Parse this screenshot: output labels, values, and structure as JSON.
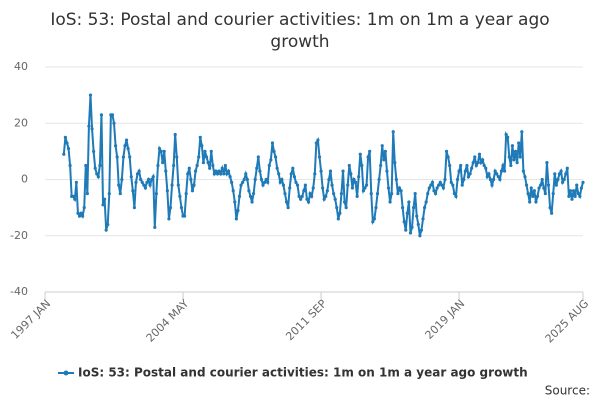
{
  "chart_data": {
    "type": "line",
    "title": "IoS: 53: Postal and courier activities: 1m on 1m a year ago growth",
    "source": "Source:",
    "categories": [
      "1997 JAN",
      null,
      null,
      null,
      null,
      null,
      null,
      null,
      null,
      null,
      null,
      null,
      null,
      null,
      null,
      null,
      null,
      null,
      null,
      null,
      null,
      null,
      null,
      null,
      null,
      null,
      null,
      null,
      null,
      null,
      null,
      null,
      null,
      null,
      null,
      null,
      null,
      null,
      null,
      null,
      null,
      null,
      null,
      null,
      null,
      null,
      null,
      null,
      null,
      null,
      null,
      null,
      null,
      null,
      null,
      null,
      null,
      null,
      null,
      null,
      null,
      null,
      null,
      null,
      null,
      null,
      null,
      null,
      null,
      null,
      null,
      null,
      null,
      null,
      null,
      null,
      null,
      null,
      null,
      null,
      null,
      null,
      null,
      null,
      null,
      null,
      null,
      null,
      "2004 MAY",
      null,
      null,
      null,
      null,
      null,
      null,
      null,
      null,
      null,
      null,
      null,
      null,
      null,
      null,
      null,
      null,
      null,
      null,
      null,
      null,
      null,
      null,
      null,
      null,
      null,
      null,
      null,
      null,
      null,
      null,
      null,
      null,
      null,
      null,
      null,
      null,
      null,
      null,
      null,
      null,
      null,
      null,
      null,
      null,
      null,
      null,
      null,
      null,
      null,
      null,
      null,
      null,
      null,
      null,
      null,
      null,
      null,
      null,
      null,
      null,
      null,
      null,
      null,
      null,
      null,
      null,
      null,
      null,
      null,
      null,
      null,
      null,
      null,
      null,
      null,
      null,
      null,
      null,
      null,
      null,
      null,
      null,
      null,
      null,
      null,
      null,
      null,
      "2011 SEP",
      null,
      null,
      null,
      null,
      null,
      null,
      null,
      null,
      null,
      null,
      null,
      null,
      null,
      null,
      null,
      null,
      null,
      null,
      null,
      null,
      null,
      null,
      null,
      null,
      null,
      null,
      null,
      null,
      null,
      null,
      null,
      null,
      null,
      null,
      null,
      null,
      null,
      null,
      null,
      null,
      null,
      null,
      null,
      null,
      null,
      null,
      null,
      null,
      null,
      null,
      null,
      null,
      null,
      null,
      null,
      null,
      null,
      null,
      null,
      null,
      null,
      null,
      null,
      null,
      null,
      null,
      null,
      null,
      null,
      null,
      null,
      null,
      null,
      null,
      null,
      null,
      null,
      null,
      null,
      null,
      null,
      null,
      null,
      null,
      null,
      null,
      null,
      "2019 JAN",
      null,
      null,
      null,
      null,
      null,
      null,
      null,
      null,
      null,
      null,
      null,
      null,
      null,
      null,
      null,
      null,
      null,
      null,
      null,
      null,
      null,
      null,
      null,
      null,
      null,
      null,
      null,
      null,
      null,
      null,
      null,
      null,
      null,
      null,
      null,
      null,
      null,
      null,
      null,
      null,
      null,
      null,
      null,
      null,
      null,
      null,
      null,
      null,
      null,
      null,
      null,
      null,
      null,
      null,
      null,
      null,
      null,
      null,
      null,
      null,
      null,
      null,
      null,
      null,
      null,
      null,
      null,
      null,
      null,
      null,
      null,
      null,
      null,
      null,
      null,
      null,
      null,
      null,
      "2025 AUG"
    ],
    "series": [
      {
        "name": "IoS: 53: Postal and courier activities: 1m on 1m a year ago growth",
        "color": "#1f7ab8",
        "values": [
          null,
          null,
          null,
          null,
          null,
          null,
          null,
          null,
          null,
          null,
          null,
          null,
          9,
          15,
          13,
          11,
          5,
          -6,
          -6,
          -7,
          -1,
          -12,
          -13,
          -12,
          -13,
          -10,
          5,
          -5,
          19,
          30,
          18,
          10,
          4,
          2,
          1,
          5,
          23,
          -9,
          -7,
          -18,
          -16,
          -5,
          23,
          23,
          20,
          12,
          8,
          -2,
          -5,
          0,
          8,
          12,
          14,
          11,
          8,
          1,
          -4,
          -10,
          -1,
          2,
          3,
          0,
          -1,
          -2,
          -3,
          -1,
          0,
          -2,
          0,
          1,
          -17,
          -5,
          5,
          11,
          10,
          6,
          10,
          3,
          -4,
          -14,
          -10,
          -2,
          5,
          16,
          8,
          -2,
          -6,
          -10,
          -13,
          -13,
          -5,
          2,
          4,
          0,
          -4,
          -2,
          3,
          5,
          8,
          15,
          12,
          6,
          10,
          8,
          6,
          4,
          10,
          5,
          2,
          3,
          2,
          3,
          2,
          4,
          2,
          5,
          2,
          3,
          1,
          -1,
          -4,
          -8,
          -14,
          -11,
          -6,
          -2,
          -1,
          0,
          2,
          0,
          -4,
          -6,
          -8,
          -5,
          0,
          4,
          8,
          3,
          0,
          -2,
          -1,
          0,
          -1,
          5,
          7,
          13,
          10,
          8,
          4,
          2,
          -1,
          0,
          -2,
          -5,
          -8,
          -10,
          -3,
          2,
          4,
          1,
          -1,
          -2,
          -6,
          -7,
          -6,
          -4,
          -2,
          -7,
          -8,
          -5,
          -6,
          -3,
          2,
          13,
          14,
          8,
          3,
          -3,
          -7,
          -6,
          -4,
          0,
          3,
          -2,
          -5,
          -7,
          -10,
          -14,
          -12,
          -5,
          3,
          -8,
          -10,
          -2,
          5,
          2,
          -3,
          0,
          -1,
          -6,
          1,
          9,
          5,
          -4,
          -3,
          -2,
          8,
          10,
          -5,
          -15,
          -14,
          -10,
          -5,
          0,
          5,
          12,
          7,
          10,
          3,
          -3,
          -8,
          -5,
          17,
          6,
          0,
          -5,
          -3,
          -4,
          -10,
          -15,
          -18,
          -12,
          -8,
          -19,
          -17,
          -10,
          -5,
          -13,
          -16,
          -20,
          -18,
          -14,
          -10,
          -8,
          -5,
          -3,
          -2,
          -1,
          -4,
          -5,
          -3,
          -2,
          -1,
          -2,
          -3,
          0,
          10,
          8,
          5,
          -1,
          -2,
          -5,
          -6,
          0,
          3,
          5,
          -2,
          0,
          3,
          5,
          1,
          2,
          4,
          6,
          8,
          5,
          6,
          9,
          6,
          7,
          5,
          4,
          1,
          2,
          0,
          -2,
          0,
          3,
          2,
          1,
          0,
          3,
          5,
          3,
          16,
          15,
          8,
          5,
          12,
          7,
          10,
          6,
          13,
          8,
          17,
          3,
          1,
          -2,
          -5,
          -8,
          -3,
          -6,
          -4,
          -8,
          -6,
          -3,
          -2,
          0,
          -3,
          -5,
          6,
          -2,
          -10,
          -12,
          -5,
          2,
          -2,
          0,
          2,
          3,
          -1,
          0,
          2,
          4,
          -6,
          -4,
          -7,
          -4,
          -6,
          -2,
          -5,
          -6,
          -3,
          -1
        ]
      }
    ],
    "ylim": [
      -40,
      40
    ],
    "yticks": [
      -40,
      -20,
      0,
      20,
      40
    ],
    "grid": true
  }
}
